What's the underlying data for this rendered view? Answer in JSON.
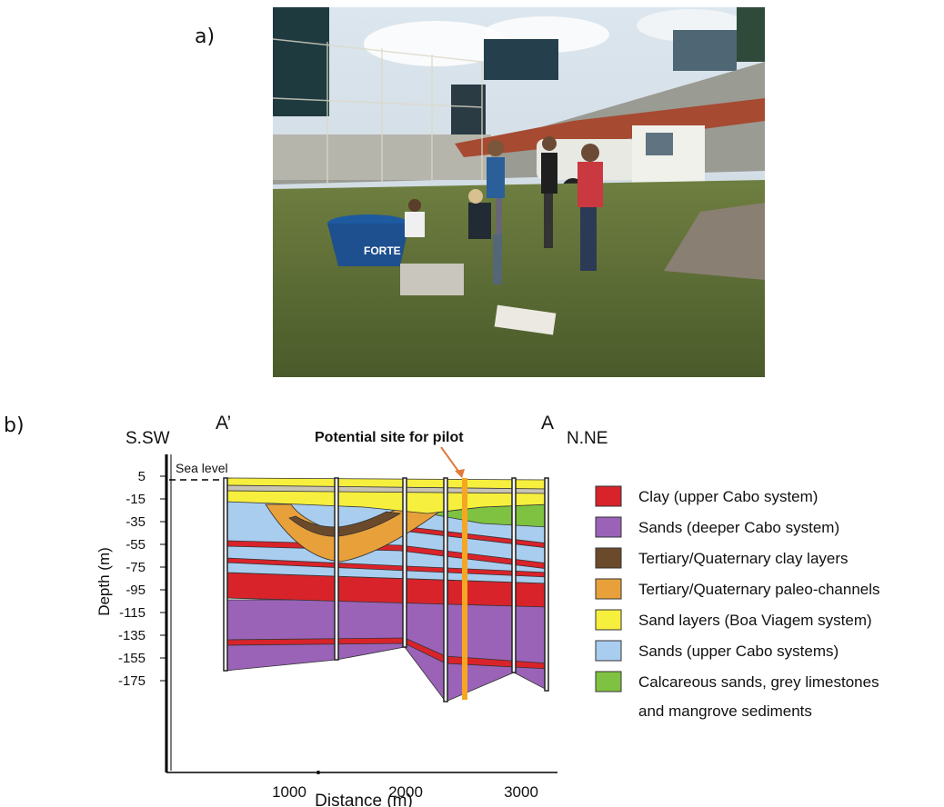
{
  "labels": {
    "a": "a)",
    "b": "b)"
  },
  "photo": {
    "sign_text": "FORTE"
  },
  "section": {
    "dir_left": "S.SW",
    "dir_right": "N.NE",
    "end_left": "A’",
    "end_right": "A",
    "pilot_label": "Potential site for pilot",
    "sea_level": "Sea level",
    "ylabel": "Depth (m)",
    "xlabel": "Distance (m)",
    "y_ticks": [
      "5",
      "-15",
      "-35",
      "-55",
      "-75",
      "-95",
      "-115",
      "-135",
      "-155",
      "-175"
    ],
    "x_ticks": [
      "1000",
      "2000",
      "3000"
    ],
    "colors": {
      "clay": "#d9232a",
      "sands_deep": "#9a63b8",
      "tq_clay": "#6b4a2b",
      "paleo": "#e8a13a",
      "boa_viagem": "#f6ef3d",
      "sands_upper": "#a9cdef",
      "calcareous": "#7fc241",
      "pilot": "#f5a623"
    }
  },
  "legend": {
    "items": [
      {
        "key": "clay",
        "label": "Clay (upper Cabo system)"
      },
      {
        "key": "sands_deep",
        "label": "Sands (deeper Cabo system)"
      },
      {
        "key": "tq_clay",
        "label": "Tertiary/Quaternary clay layers"
      },
      {
        "key": "paleo",
        "label": "Tertiary/Quaternary paleo-channels"
      },
      {
        "key": "boa_viagem",
        "label": "Sand layers (Boa Viagem system)"
      },
      {
        "key": "sands_upper",
        "label": "Sands (upper Cabo systems)"
      },
      {
        "key": "calcareous",
        "label": "Calcareous sands, grey limestones"
      }
    ],
    "continuation": "and mangrove sediments"
  }
}
